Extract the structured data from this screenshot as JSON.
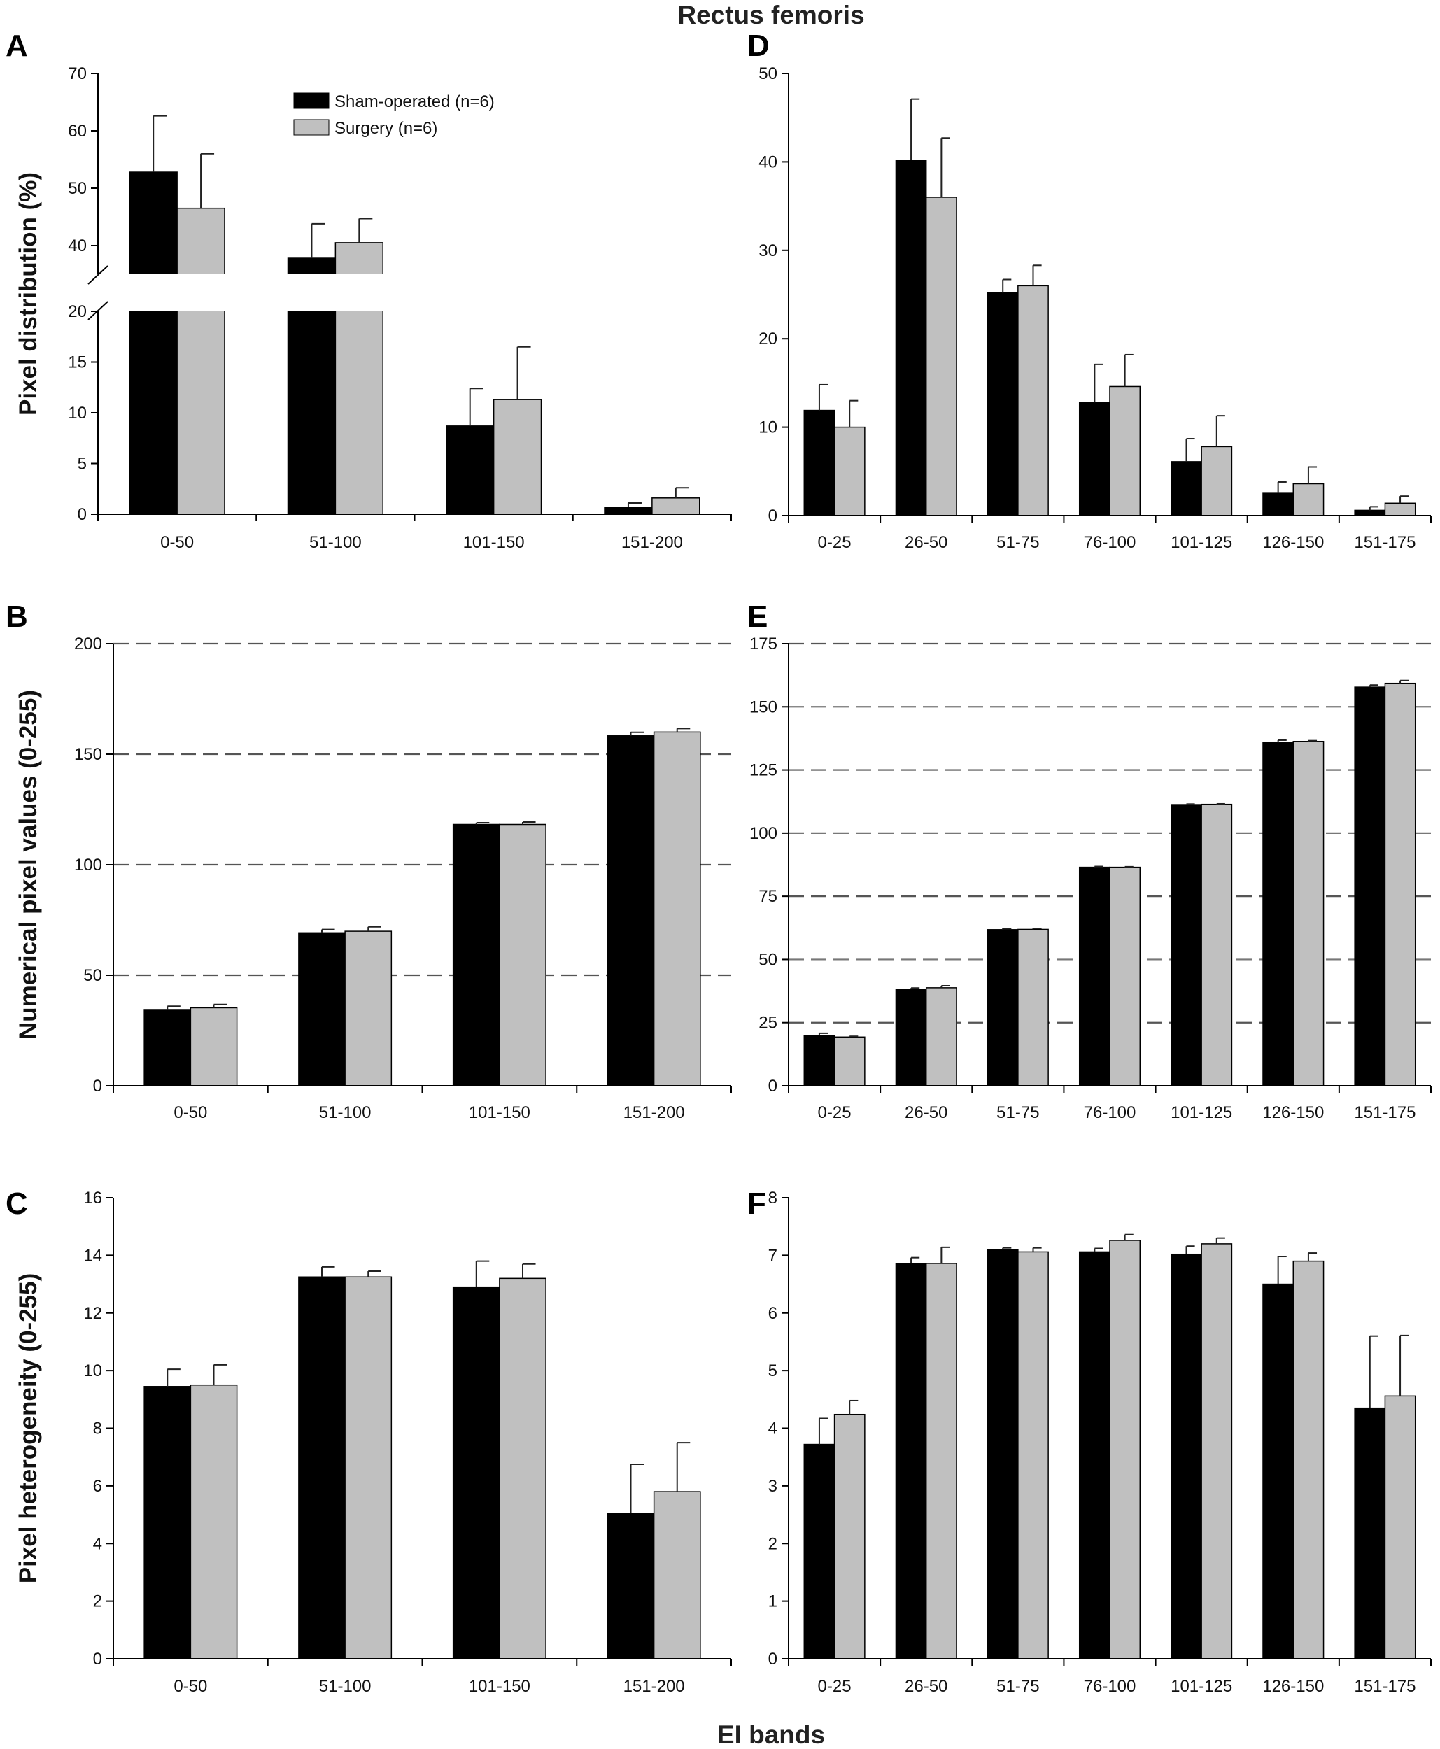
{
  "figure": {
    "title": "Rectus femoris",
    "xlabel": "EI bands",
    "legend": {
      "placement": "top-center",
      "panel": "A",
      "entries": [
        "Sham-operated (n=6)",
        "Surgery (n=6)"
      ]
    },
    "colors": {
      "sham": "#000000",
      "surgery": "#c0c0c0",
      "grid": "#555555"
    }
  },
  "chart_data": [
    {
      "panel": "A",
      "type": "bar",
      "ylabel": "Pixel distribution (%)",
      "categories": [
        "0-50",
        "51-100",
        "101-150",
        "151-200"
      ],
      "series": [
        {
          "name": "Sham-operated (n=6)",
          "values": [
            52.8,
            37.8,
            8.7,
            0.7
          ],
          "errors": [
            9.8,
            6.0,
            3.7,
            0.4
          ]
        },
        {
          "name": "Surgery (n=6)",
          "values": [
            46.5,
            40.5,
            11.3,
            1.6
          ],
          "errors": [
            9.5,
            4.2,
            5.2,
            1.0
          ]
        }
      ],
      "axis_break": {
        "lower_range": [
          0,
          20
        ],
        "upper_range": [
          35,
          70
        ]
      },
      "yticks": [
        0,
        5,
        10,
        15,
        20,
        40,
        50,
        60,
        70
      ],
      "grid": false
    },
    {
      "panel": "B",
      "type": "bar",
      "ylabel": "Numerical pixel values (0-255)",
      "categories": [
        "0-50",
        "51-100",
        "101-150",
        "151-200"
      ],
      "series": [
        {
          "name": "Sham-operated (n=6)",
          "values": [
            34.5,
            69.2,
            118.2,
            158.3
          ],
          "errors": [
            1.5,
            1.5,
            0.8,
            1.6
          ]
        },
        {
          "name": "Surgery (n=6)",
          "values": [
            35.3,
            69.9,
            118.2,
            160.0
          ],
          "errors": [
            1.5,
            2.0,
            1.1,
            1.6
          ]
        }
      ],
      "ylim": [
        0,
        200
      ],
      "yticks": [
        0,
        50,
        100,
        150,
        200
      ],
      "grid": true
    },
    {
      "panel": "C",
      "type": "bar",
      "ylabel": "Pixel heterogeneity (0-255)",
      "categories": [
        "0-50",
        "51-100",
        "101-150",
        "151-200"
      ],
      "series": [
        {
          "name": "Sham-operated (n=6)",
          "values": [
            9.45,
            13.25,
            12.9,
            5.05
          ],
          "errors": [
            0.6,
            0.35,
            0.9,
            1.7
          ]
        },
        {
          "name": "Surgery (n=6)",
          "values": [
            9.5,
            13.25,
            13.2,
            5.8
          ],
          "errors": [
            0.7,
            0.2,
            0.5,
            1.7
          ]
        }
      ],
      "ylim": [
        0,
        16
      ],
      "yticks": [
        0,
        2,
        4,
        6,
        8,
        10,
        12,
        14,
        16
      ],
      "grid": false
    },
    {
      "panel": "D",
      "type": "bar",
      "categories": [
        "0-25",
        "26-50",
        "51-75",
        "76-100",
        "101-125",
        "126-150",
        "151-175"
      ],
      "series": [
        {
          "name": "Sham-operated (n=6)",
          "values": [
            11.9,
            40.2,
            25.2,
            12.8,
            6.1,
            2.6,
            0.6
          ],
          "errors": [
            2.9,
            6.9,
            1.5,
            4.3,
            2.6,
            1.2,
            0.4
          ]
        },
        {
          "name": "Surgery (n=6)",
          "values": [
            10.0,
            36.0,
            26.0,
            14.6,
            7.8,
            3.6,
            1.4
          ],
          "errors": [
            3.0,
            6.7,
            2.3,
            3.6,
            3.5,
            1.9,
            0.8
          ]
        }
      ],
      "ylim": [
        0,
        50
      ],
      "yticks": [
        0,
        10,
        20,
        30,
        40,
        50
      ],
      "grid": false
    },
    {
      "panel": "E",
      "type": "bar",
      "categories": [
        "0-25",
        "26-50",
        "51-75",
        "76-100",
        "101-125",
        "126-150",
        "151-175"
      ],
      "series": [
        {
          "name": "Sham-operated (n=6)",
          "values": [
            20.0,
            38.2,
            61.8,
            86.5,
            111.3,
            135.8,
            157.8
          ],
          "errors": [
            0.8,
            0.5,
            0.5,
            0.3,
            0.2,
            1.0,
            0.8
          ]
        },
        {
          "name": "Surgery (n=6)",
          "values": [
            19.3,
            38.8,
            61.9,
            86.5,
            111.4,
            136.3,
            159.3
          ],
          "errors": [
            0.3,
            0.8,
            0.4,
            0.2,
            0.2,
            0.3,
            1.1
          ]
        }
      ],
      "ylim": [
        0,
        175
      ],
      "yticks": [
        0,
        25,
        50,
        75,
        100,
        125,
        150,
        175
      ],
      "grid": true
    },
    {
      "panel": "F",
      "type": "bar",
      "categories": [
        "0-25",
        "26-50",
        "51-75",
        "76-100",
        "101-125",
        "126-150",
        "151-175"
      ],
      "series": [
        {
          "name": "Sham-operated (n=6)",
          "values": [
            3.72,
            6.86,
            7.1,
            7.06,
            7.02,
            6.5,
            4.35
          ],
          "errors": [
            0.45,
            0.1,
            0.03,
            0.06,
            0.14,
            0.48,
            1.25
          ]
        },
        {
          "name": "Surgery (n=6)",
          "values": [
            4.24,
            6.86,
            7.06,
            7.26,
            7.2,
            6.9,
            4.56
          ],
          "errors": [
            0.24,
            0.28,
            0.07,
            0.1,
            0.1,
            0.14,
            1.05
          ]
        }
      ],
      "ylim": [
        0,
        8
      ],
      "yticks": [
        0,
        1,
        2,
        3,
        4,
        5,
        6,
        7,
        8
      ],
      "grid": false
    }
  ]
}
